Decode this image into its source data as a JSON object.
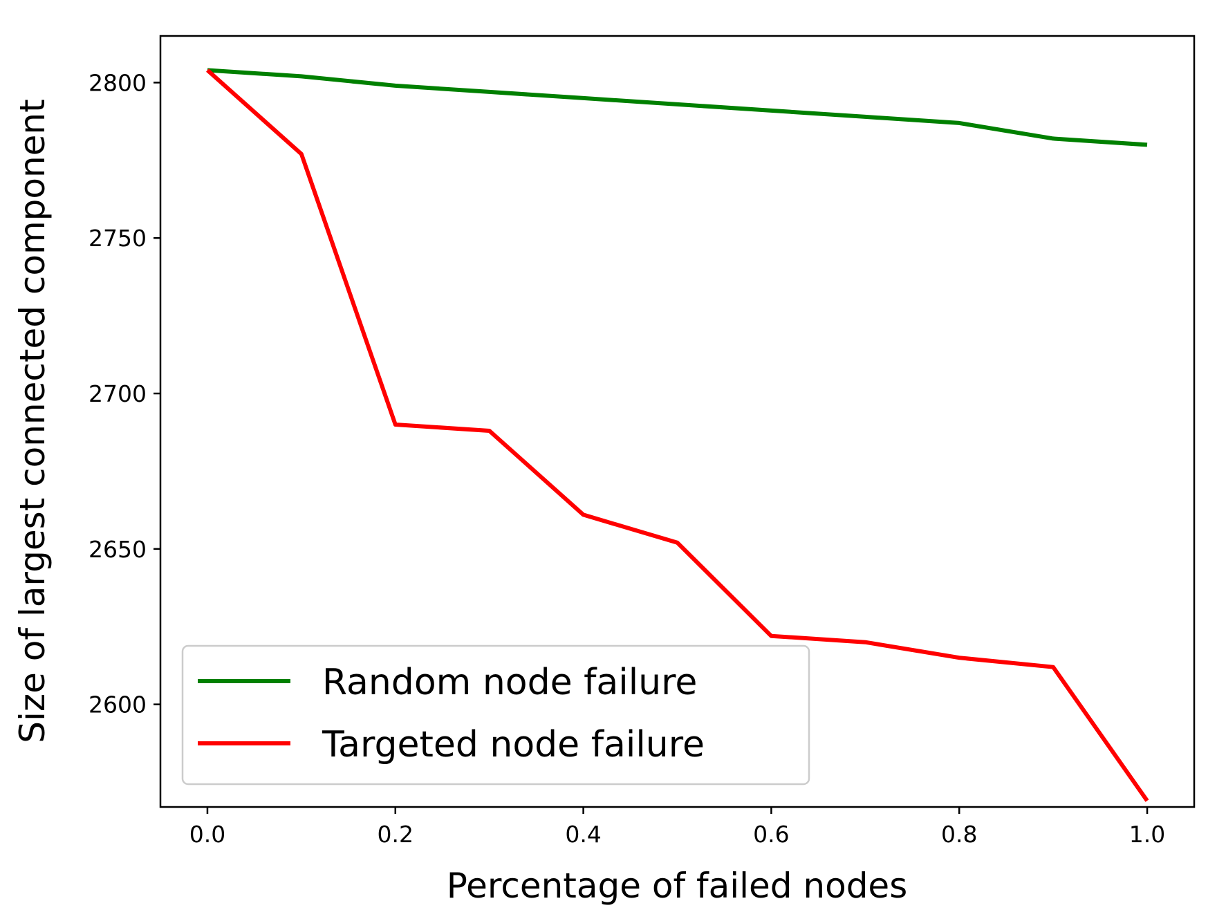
{
  "chart_data": {
    "type": "line",
    "xlabel": "Percentage of failed nodes",
    "ylabel": "Size of largest connected component",
    "xlim": [
      -0.05,
      1.05
    ],
    "ylim": [
      2567,
      2815
    ],
    "xticks": [
      0.0,
      0.2,
      0.4,
      0.6,
      0.8,
      1.0
    ],
    "xtick_labels": [
      "0.0",
      "0.2",
      "0.4",
      "0.6",
      "0.8",
      "1.0"
    ],
    "yticks": [
      2600,
      2650,
      2700,
      2750,
      2800
    ],
    "ytick_labels": [
      "2600",
      "2650",
      "2700",
      "2750",
      "2800"
    ],
    "grid": false,
    "legend_position": "lower-left",
    "x": [
      0.0,
      0.1,
      0.2,
      0.3,
      0.4,
      0.5,
      0.6,
      0.7,
      0.8,
      0.9,
      1.0
    ],
    "series": [
      {
        "name": "Random node failure",
        "color": "#008000",
        "values": [
          2804,
          2802,
          2799,
          2797,
          2795,
          2793,
          2791,
          2789,
          2787,
          2782,
          2780
        ]
      },
      {
        "name": "Targeted node failure",
        "color": "#ff0000",
        "values": [
          2804,
          2777,
          2690,
          2688,
          2661,
          2652,
          2622,
          2620,
          2615,
          2612,
          2569
        ]
      }
    ]
  }
}
